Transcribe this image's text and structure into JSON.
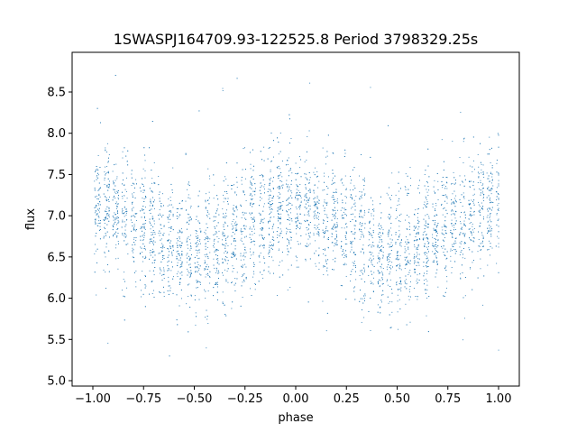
{
  "chart_data": {
    "type": "scatter",
    "title": "1SWASPJ164709.93-122525.8 Period 3798329.25s",
    "xlabel": "phase",
    "ylabel": "flux",
    "xlim": [
      -1.0,
      1.0
    ],
    "ylim": [
      5.0,
      8.8
    ],
    "x_ticks": [
      -1.0,
      -0.75,
      -0.5,
      -0.25,
      0.0,
      0.25,
      0.5,
      0.75,
      1.0
    ],
    "x_tick_labels": [
      "−1.00",
      "−0.75",
      "−0.50",
      "−0.25",
      "0.00",
      "0.25",
      "0.50",
      "0.75",
      "1.00"
    ],
    "y_ticks": [
      5.0,
      5.5,
      6.0,
      6.5,
      7.0,
      7.5,
      8.0,
      8.5
    ],
    "y_tick_labels": [
      "5.0",
      "5.5",
      "6.0",
      "6.5",
      "7.0",
      "7.5",
      "8.0",
      "8.5"
    ],
    "grid": false,
    "legend": "none",
    "series_color": "#1f77b4",
    "series": [
      {
        "phase_profile": [
          [
            -1.0,
            7.1
          ],
          [
            -0.9,
            7.05
          ],
          [
            -0.8,
            6.95
          ],
          [
            -0.7,
            6.8
          ],
          [
            -0.6,
            6.6
          ],
          [
            -0.5,
            6.55
          ],
          [
            -0.45,
            6.55
          ],
          [
            -0.35,
            6.7
          ],
          [
            -0.25,
            6.85
          ],
          [
            -0.15,
            7.0
          ],
          [
            -0.05,
            7.1
          ],
          [
            0.0,
            7.15
          ],
          [
            0.1,
            7.05
          ],
          [
            0.2,
            6.95
          ],
          [
            0.3,
            6.8
          ],
          [
            0.4,
            6.6
          ],
          [
            0.5,
            6.55
          ],
          [
            0.55,
            6.55
          ],
          [
            0.65,
            6.7
          ],
          [
            0.75,
            6.85
          ],
          [
            0.85,
            7.0
          ],
          [
            0.95,
            7.1
          ],
          [
            1.0,
            7.15
          ]
        ],
        "scatter_sigma": 0.35,
        "outlier_range": [
          5.2,
          8.8
        ]
      }
    ]
  }
}
